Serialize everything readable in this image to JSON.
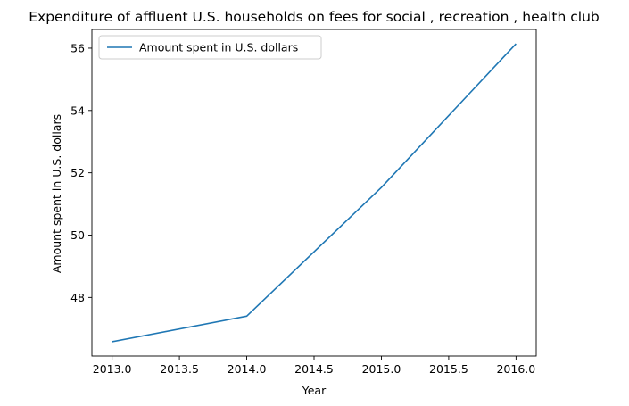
{
  "chart_data": {
    "type": "line",
    "title": "Expenditure of affluent U.S. households on fees for social , recreation , health club",
    "xlabel": "Year",
    "ylabel": "Amount spent in U.S. dollars",
    "x": [
      2013,
      2014,
      2015,
      2016
    ],
    "series": [
      {
        "name": "Amount spent in U.S. dollars",
        "color": "#1f77b4",
        "values": [
          46.58,
          47.4,
          51.53,
          56.14
        ]
      }
    ],
    "xlim": [
      2012.85,
      2016.15
    ],
    "ylim": [
      46.12,
      56.6
    ],
    "xticks": [
      "2013.0",
      "2013.5",
      "2014.0",
      "2014.5",
      "2015.0",
      "2015.5",
      "2016.0"
    ],
    "yticks": [
      "48",
      "50",
      "52",
      "54",
      "56"
    ],
    "grid": false,
    "legend_position": "upper-left"
  }
}
